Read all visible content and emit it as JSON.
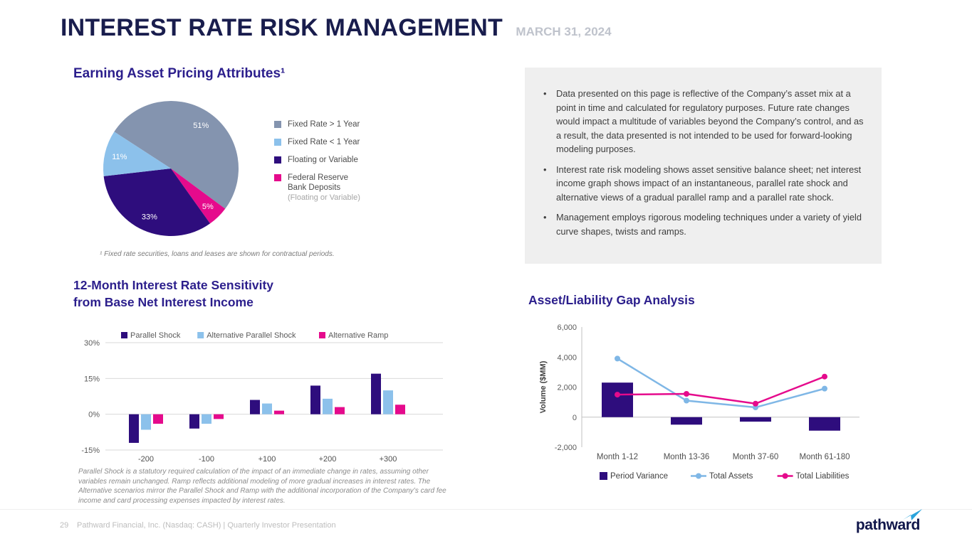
{
  "header": {
    "title": "INTEREST RATE RISK MANAGEMENT",
    "date": "MARCH 31, 2024"
  },
  "colors": {
    "navy_title": "#191D4D",
    "heading_indigo": "#2B1E8C",
    "purple": "#2E0D7D",
    "light_blue": "#8CC1EB",
    "slate_gray_blue": "#8494AF",
    "magenta": "#E50A8C",
    "notes_background": "#EFEFEF"
  },
  "pie_section": {
    "title": "Earning Asset Pricing Attributes¹",
    "footnote": "¹ Fixed rate securities, loans and leases are shown for contractual periods."
  },
  "notes": {
    "bullets": [
      "Data presented on this page is reflective of the Company’s asset mix at a point in time and calculated for regulatory purposes. Future rate changes would impact a multitude of variables beyond the Company’s control, and as a result, the data presented is not intended to be used for forward-looking modeling purposes.",
      "Interest rate risk modeling shows asset sensitive balance sheet; net interest income graph shows impact of an instantaneous, parallel rate shock and alternative views of a gradual parallel ramp and a parallel rate shock.",
      "Management employs rigorous modeling techniques under a variety of yield curve shapes, twists and ramps."
    ]
  },
  "sensitivity_section": {
    "title_line1": "12-Month Interest Rate Sensitivity",
    "title_line2": "from Base Net Interest Income",
    "footnote": "Parallel Shock is a statutory required calculation of the impact of an immediate change in rates, assuming other variables remain unchanged. Ramp reflects additional modeling of more gradual increases in interest rates. The Alternative scenarios mirror the Parallel Shock and Ramp with the additional incorporation of the Company’s card fee income and card processing expenses impacted by interest rates."
  },
  "gap_section": {
    "title": "Asset/Liability Gap Analysis"
  },
  "footer": {
    "page_number": "29",
    "text": "Pathward Financial, Inc. (Nasdaq: CASH) | Quarterly Investor Presentation",
    "logo_text": "pathward"
  },
  "chart_data": [
    {
      "type": "pie",
      "title": "Earning Asset Pricing Attributes",
      "start_angle_deg": -57,
      "draw_order": [
        0,
        3,
        2,
        1
      ],
      "legend_position": "right",
      "slices": [
        {
          "label": "Fixed Rate > 1 Year",
          "value": 51,
          "pct_label": "51%",
          "color": "#8494AF"
        },
        {
          "label": "Fixed Rate < 1 Year",
          "value": 11,
          "pct_label": "11%",
          "color": "#8CC1EB"
        },
        {
          "label": "Floating or Variable",
          "value": 33,
          "pct_label": "33%",
          "color": "#2E0D7D"
        },
        {
          "label": "Federal Reserve Bank Deposits",
          "sublabel": "(Floating or Variable)",
          "value": 5,
          "pct_label": "5%",
          "color": "#E50A8C"
        }
      ]
    },
    {
      "type": "bar",
      "title": "12-Month Interest Rate Sensitivity from Base Net Interest Income",
      "categories": [
        "-200",
        "-100",
        "+100",
        "+200",
        "+300"
      ],
      "series": [
        {
          "name": "Parallel Shock",
          "color": "#2E0D7D",
          "values": [
            -12,
            -6,
            6,
            12,
            17
          ]
        },
        {
          "name": "Alternative Parallel Shock",
          "color": "#8CC1EB",
          "values": [
            -6.5,
            -4,
            4.5,
            6.5,
            10
          ]
        },
        {
          "name": "Alternative Ramp",
          "color": "#E50A8C",
          "values": [
            -4,
            -2,
            1.5,
            3,
            4
          ]
        }
      ],
      "xlabel": "",
      "ylabel": "",
      "ylim": [
        -15,
        30
      ],
      "yticks": [
        30,
        15,
        0,
        -15
      ],
      "ytick_labels": [
        "30%",
        "15%",
        "0%",
        "-15%"
      ],
      "grid": true,
      "legend_position": "top"
    },
    {
      "type": "combo",
      "title": "Asset/Liability Gap Analysis",
      "categories": [
        "Month 1-12",
        "Month 13-36",
        "Month 37-60",
        "Month 61-180"
      ],
      "ylabel": "Volume ($MM)",
      "ylim": [
        -2000,
        6000
      ],
      "yticks": [
        6000,
        4000,
        2000,
        0,
        -2000
      ],
      "ytick_labels": [
        "6,000",
        "4,000",
        "2,000",
        "0",
        "-2,000"
      ],
      "grid": false,
      "legend_position": "bottom",
      "bar_series": {
        "name": "Period Variance",
        "color": "#2E0D7D",
        "values": [
          2300,
          -500,
          -300,
          -900
        ]
      },
      "line_series": [
        {
          "name": "Total Assets",
          "color": "#7FB7E6",
          "values": [
            3900,
            1100,
            650,
            1900
          ]
        },
        {
          "name": "Total Liabilities",
          "color": "#E50A8C",
          "values": [
            1500,
            1550,
            900,
            2700
          ]
        }
      ]
    }
  ]
}
